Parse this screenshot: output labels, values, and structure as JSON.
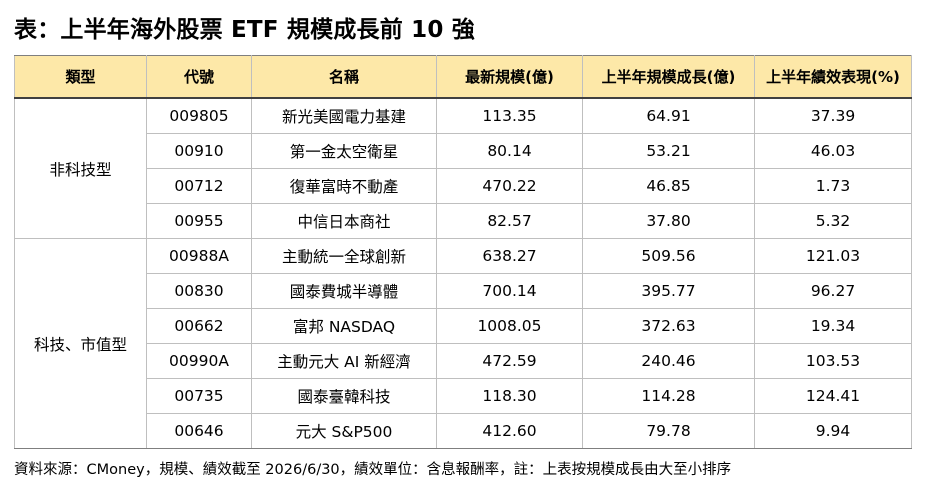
{
  "title": "表：上半年海外股票 ETF 規模成長前 10 強",
  "table": {
    "headers": [
      "類型",
      "代號",
      "名稱",
      "最新規模(億)",
      "上半年規模成長(億)",
      "上半年績效表現(%)"
    ],
    "groups": [
      {
        "category": "非科技型",
        "rows": [
          [
            "009805",
            "新光美國電力基建",
            "113.35",
            "64.91",
            "37.39"
          ],
          [
            "00910",
            "第一金太空衛星",
            "80.14",
            "53.21",
            "46.03"
          ],
          [
            "00712",
            "復華富時不動產",
            "470.22",
            "46.85",
            "1.73"
          ],
          [
            "00955",
            "中信日本商社",
            "82.57",
            "37.80",
            "5.32"
          ]
        ]
      },
      {
        "category": "科技、市值型",
        "rows": [
          [
            "00988A",
            "主動統一全球創新",
            "638.27",
            "509.56",
            "121.03"
          ],
          [
            "00830",
            "國泰費城半導體",
            "700.14",
            "395.77",
            "96.27"
          ],
          [
            "00662",
            "富邦 NASDAQ",
            "1008.05",
            "372.63",
            "19.34"
          ],
          [
            "00990A",
            "主動元大 AI 新經濟",
            "472.59",
            "240.46",
            "103.53"
          ],
          [
            "00735",
            "國泰臺韓科技",
            "118.30",
            "114.28",
            "124.41"
          ],
          [
            "00646",
            "元大 S&P500",
            "412.60",
            "79.78",
            "9.94"
          ]
        ]
      }
    ]
  },
  "footnote": "資料來源：CMoney，規模、績效截至 2026/6/30，績效單位：含息報酬率，註：上表按規模成長由大至小排序"
}
